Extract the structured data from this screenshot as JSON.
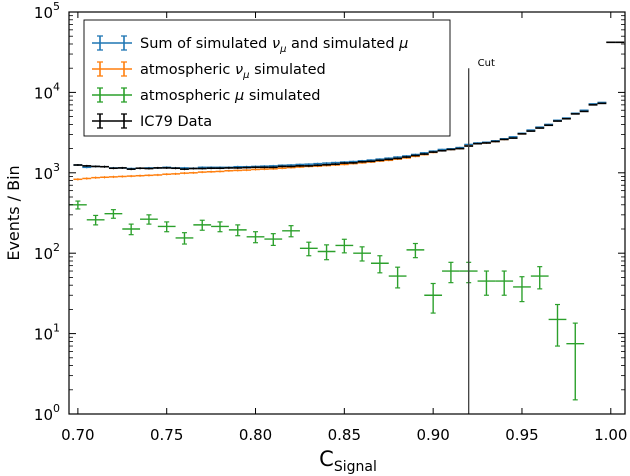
{
  "chart_data": {
    "type": "scatter",
    "xlabel": "C",
    "xlabel_sub": "Signal",
    "ylabel": "Events / Bin",
    "xlim": [
      0.695,
      1.008
    ],
    "ylim": [
      1,
      100000
    ],
    "yscale": "log",
    "grid": false,
    "legend_position": "top-left",
    "x_ticks": [
      "0.70",
      "0.75",
      "0.80",
      "0.85",
      "0.90",
      "0.95",
      "1.00"
    ],
    "x_tick_values": [
      0.7,
      0.75,
      0.8,
      0.85,
      0.9,
      0.95,
      1.0
    ],
    "y_tick_values": [
      1,
      10,
      100,
      1000,
      10000,
      100000
    ],
    "y_tick_bases": [
      "10",
      "10",
      "10",
      "10",
      "10",
      "10"
    ],
    "y_tick_exponents": [
      "0",
      "1",
      "2",
      "3",
      "4",
      "5"
    ],
    "cut": {
      "x": 0.92,
      "label": "Cut"
    },
    "series": [
      {
        "name": "Sum of simulated",
        "name_nu": "ν",
        "name_nu_sub": "μ",
        "name_mid": " and simulated ",
        "name_mu": "μ",
        "color": "#1f77b4",
        "x": [
          0.7,
          0.705,
          0.71,
          0.715,
          0.72,
          0.725,
          0.73,
          0.735,
          0.74,
          0.745,
          0.75,
          0.755,
          0.76,
          0.765,
          0.77,
          0.775,
          0.78,
          0.785,
          0.79,
          0.795,
          0.8,
          0.805,
          0.81,
          0.815,
          0.82,
          0.825,
          0.83,
          0.835,
          0.84,
          0.845,
          0.85,
          0.855,
          0.86,
          0.865,
          0.87,
          0.875,
          0.88,
          0.885,
          0.89,
          0.895,
          0.9,
          0.905,
          0.91,
          0.915,
          0.92,
          0.925,
          0.93,
          0.935,
          0.94,
          0.945,
          0.95,
          0.955,
          0.96,
          0.965,
          0.97,
          0.975,
          0.98,
          0.985,
          0.99,
          0.995,
          1.0,
          1.005
        ],
        "y": [
          1250,
          1170,
          1200,
          1190,
          1150,
          1150,
          1130,
          1140,
          1150,
          1150,
          1170,
          1150,
          1150,
          1140,
          1170,
          1170,
          1170,
          1170,
          1190,
          1190,
          1200,
          1210,
          1220,
          1240,
          1250,
          1270,
          1280,
          1300,
          1320,
          1340,
          1360,
          1380,
          1410,
          1440,
          1480,
          1520,
          1570,
          1620,
          1690,
          1770,
          1860,
          1950,
          1990,
          2060,
          2250,
          2350,
          2400,
          2500,
          2650,
          2800,
          3100,
          3400,
          3700,
          4000,
          4500,
          4800,
          5500,
          6000,
          7200,
          7500,
          42000,
          42000
        ]
      },
      {
        "name": "atmospheric",
        "name_nu": "ν",
        "name_nu_sub": "μ",
        "name_after": " simulated",
        "color": "#ff7f0e",
        "x": [
          0.7,
          0.705,
          0.71,
          0.715,
          0.72,
          0.725,
          0.73,
          0.735,
          0.74,
          0.745,
          0.75,
          0.755,
          0.76,
          0.765,
          0.77,
          0.775,
          0.78,
          0.785,
          0.79,
          0.795,
          0.8,
          0.805,
          0.81,
          0.815,
          0.82,
          0.825,
          0.83,
          0.835,
          0.84,
          0.845,
          0.85,
          0.855,
          0.86,
          0.865,
          0.87,
          0.875,
          0.88,
          0.885,
          0.89,
          0.895,
          0.9,
          0.905,
          0.91,
          0.915,
          0.92,
          0.925,
          0.93,
          0.935,
          0.94,
          0.945,
          0.95,
          0.955,
          0.96,
          0.965,
          0.97,
          0.975,
          0.98,
          0.985,
          0.99,
          0.995,
          1.0,
          1.005
        ],
        "y": [
          830,
          850,
          870,
          880,
          890,
          900,
          910,
          920,
          930,
          940,
          960,
          970,
          990,
          1000,
          1020,
          1030,
          1040,
          1060,
          1070,
          1080,
          1100,
          1110,
          1120,
          1140,
          1160,
          1180,
          1200,
          1210,
          1230,
          1250,
          1270,
          1300,
          1330,
          1360,
          1400,
          1430,
          1480,
          1530,
          1600,
          1680,
          1790,
          1880,
          1950,
          2000,
          2200,
          2300,
          2350,
          2450,
          2600,
          2750,
          3050,
          3350,
          3650,
          3950,
          4450,
          4750,
          5450,
          5950,
          7150,
          7450,
          42000,
          42000
        ]
      },
      {
        "name": "atmospheric",
        "name_mu": "μ",
        "name_after": " simulated",
        "color": "#2ca02c",
        "x": [
          0.7,
          0.71,
          0.72,
          0.73,
          0.74,
          0.75,
          0.76,
          0.77,
          0.78,
          0.79,
          0.8,
          0.81,
          0.82,
          0.83,
          0.84,
          0.85,
          0.86,
          0.87,
          0.88,
          0.89,
          0.9,
          0.91,
          0.92,
          0.93,
          0.94,
          0.95,
          0.96,
          0.97,
          0.98,
          0.99
        ],
        "y": [
          400,
          260,
          310,
          200,
          265,
          215,
          155,
          225,
          215,
          195,
          160,
          150,
          190,
          115,
          105,
          125,
          100,
          75,
          52,
          110,
          30,
          60,
          60,
          45,
          45,
          38,
          52,
          15,
          7.5,
          null
        ],
        "err": [
          45,
          35,
          38,
          30,
          35,
          30,
          25,
          32,
          30,
          30,
          25,
          25,
          30,
          22,
          22,
          24,
          20,
          18,
          15,
          22,
          12,
          17,
          17,
          15,
          15,
          13,
          16,
          8,
          6,
          null
        ]
      },
      {
        "name": "IC79 Data",
        "color": "#000000",
        "x": [
          0.7,
          0.705,
          0.71,
          0.715,
          0.72,
          0.725,
          0.73,
          0.735,
          0.74,
          0.745,
          0.75,
          0.755,
          0.76,
          0.765,
          0.77,
          0.775,
          0.78,
          0.785,
          0.79,
          0.795,
          0.8,
          0.805,
          0.81,
          0.815,
          0.82,
          0.825,
          0.83,
          0.835,
          0.84,
          0.845,
          0.85,
          0.855,
          0.86,
          0.865,
          0.87,
          0.875,
          0.88,
          0.885,
          0.89,
          0.895,
          0.9,
          0.905,
          0.91,
          0.915,
          0.92,
          0.925,
          0.93,
          0.935,
          0.94,
          0.945,
          0.95,
          0.955,
          0.96,
          0.965,
          0.97,
          0.975,
          0.98,
          0.985,
          0.99,
          0.995,
          1.0,
          1.005
        ],
        "y": [
          1250,
          1220,
          1200,
          1190,
          1140,
          1150,
          1110,
          1140,
          1130,
          1150,
          1150,
          1140,
          1110,
          1130,
          1130,
          1140,
          1140,
          1150,
          1150,
          1160,
          1170,
          1170,
          1170,
          1200,
          1200,
          1220,
          1220,
          1240,
          1260,
          1280,
          1320,
          1330,
          1370,
          1390,
          1430,
          1470,
          1510,
          1570,
          1640,
          1710,
          1810,
          1880,
          1950,
          2000,
          2150,
          2300,
          2350,
          2450,
          2600,
          2700,
          3050,
          3300,
          3600,
          3900,
          4400,
          4700,
          5400,
          5800,
          7000,
          7300,
          42000,
          42000
        ]
      }
    ]
  }
}
